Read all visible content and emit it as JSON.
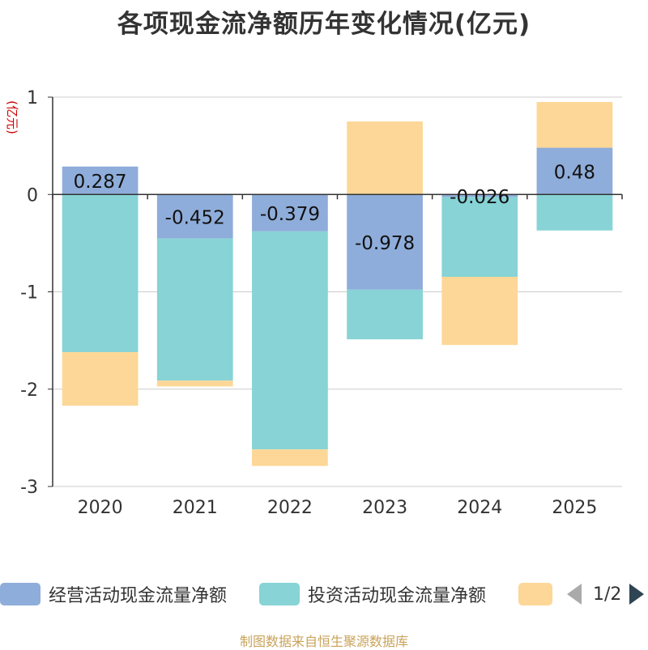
{
  "chart_data": {
    "type": "bar",
    "stacked": true,
    "title": "各项现金流净额历年变化情况(亿元)",
    "ylabel": "(亿元)",
    "xlabel": "",
    "categories": [
      "2020",
      "2021",
      "2022",
      "2023",
      "2024",
      "2025"
    ],
    "ylim": [
      -3,
      1
    ],
    "yticks": [
      1,
      0,
      -1,
      -2,
      -3
    ],
    "series": [
      {
        "name": "经营活动现金流量净额",
        "color": "#8fadda",
        "values": [
          0.287,
          -0.452,
          -0.379,
          -0.978,
          -0.026,
          0.48
        ],
        "labels": [
          "0.287",
          "-0.452",
          "-0.379",
          "-0.978",
          "-0.026",
          "0.48"
        ]
      },
      {
        "name": "投资活动现金流量净额",
        "color": "#87d3d6",
        "values": [
          -1.62,
          -1.46,
          -2.24,
          -0.51,
          -0.82,
          -0.37
        ]
      },
      {
        "name": "",
        "color": "#fdd797",
        "values": [
          -0.55,
          -0.06,
          -0.17,
          0.75,
          -0.7,
          0.47
        ]
      }
    ],
    "legend_position": "bottom"
  },
  "pager": {
    "text": "1/2"
  },
  "footer": "制图数据来自恒生聚源数据库"
}
